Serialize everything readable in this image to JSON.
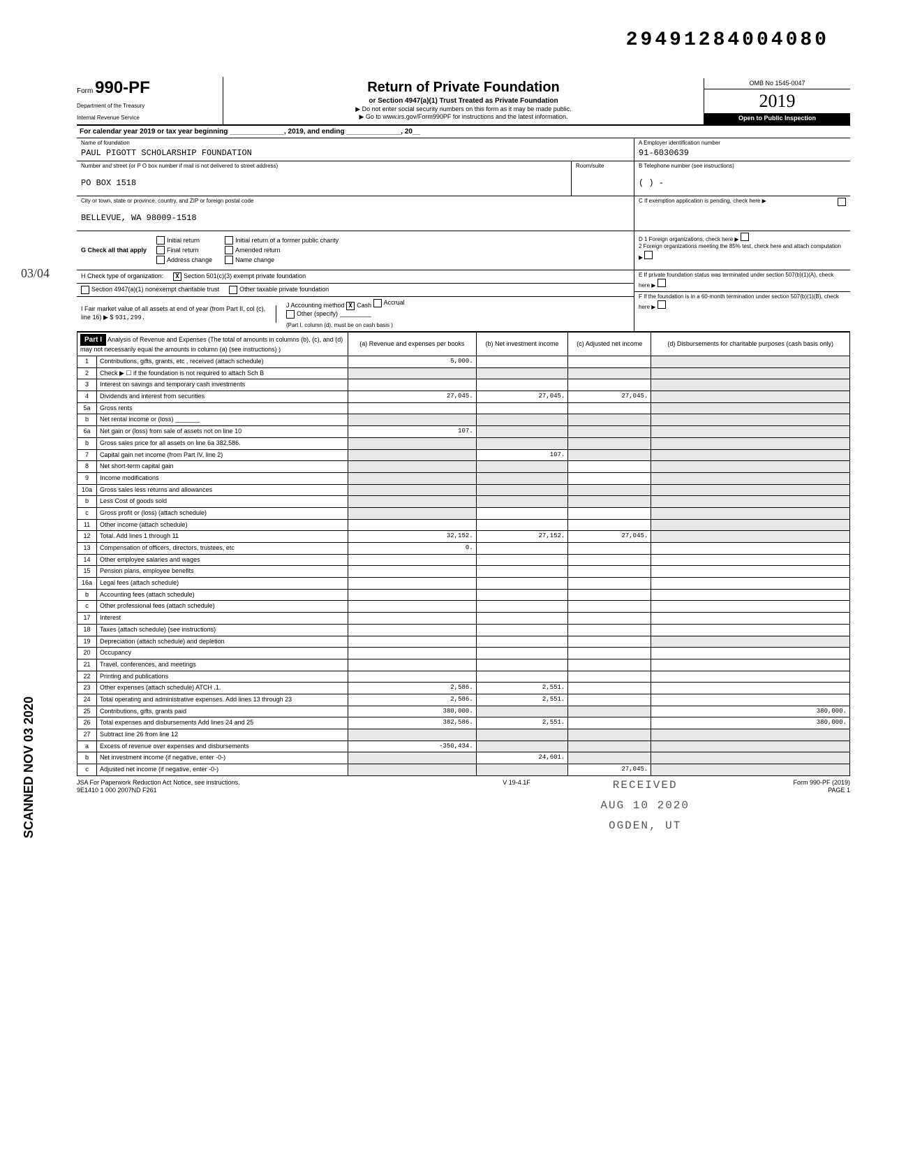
{
  "doc_id": "29491284004080",
  "form": {
    "prefix": "Form",
    "number": "990-PF",
    "dept1": "Department of the Treasury",
    "dept2": "Internal Revenue Service"
  },
  "header": {
    "title": "Return of Private Foundation",
    "sub1": "or Section 4947(a)(1) Trust Treated as Private Foundation",
    "sub2": "▶ Do not enter social security numbers on this form as it may be made public.",
    "sub3": "▶ Go to www.irs.gov/Form990PF for instructions and the latest information.",
    "omb": "OMB No 1545-0047",
    "year": "2019",
    "open": "Open to Public Inspection"
  },
  "cal_year": "For calendar year 2019 or tax year beginning ______________, 2019, and ending ______________, 20__",
  "identity": {
    "name_label": "Name of foundation",
    "name": "PAUL PIGOTT SCHOLARSHIP FOUNDATION",
    "addr_label": "Number and street (or P O box number if mail is not delivered to street address)",
    "addr": "PO BOX 1518",
    "city_label": "City or town, state or province, country, and ZIP or foreign postal code",
    "city": "BELLEVUE, WA 98009-1518",
    "room_label": "Room/suite",
    "ein_label": "A  Employer identification number",
    "ein": "91-6030639",
    "phone_label": "B  Telephone number (see instructions)",
    "phone": "(     )     -",
    "c_label": "C  If exemption application is pending, check here",
    "d1": "D  1  Foreign organizations, check here",
    "d2": "2  Foreign organizations meeting the 85% test, check here and attach computation",
    "e_label": "E  If private foundation status was terminated under section 507(b)(1)(A), check here",
    "f_label": "F  If the foundation is in a 60-month termination under section 507(b)(1)(B), check here"
  },
  "g": {
    "label": "G  Check all that apply",
    "opts": [
      "Initial return",
      "Final return",
      "Address change",
      "Initial return of a former public charity",
      "Amended return",
      "Name change"
    ]
  },
  "h": {
    "label": "H  Check type of organization:",
    "opt1": "Section 501(c)(3) exempt private foundation",
    "opt1_checked": "X",
    "opt2": "Section 4947(a)(1) nonexempt charitable trust",
    "opt3": "Other taxable private foundation"
  },
  "i": {
    "label": "I  Fair market value of all assets at end of year (from Part II, col (c), line 16) ▶ $",
    "value": "931,299."
  },
  "j": {
    "label": "J Accounting method",
    "cash": "Cash",
    "cash_checked": "X",
    "accrual": "Accrual",
    "other": "Other (specify)",
    "note": "(Part I, column (d), must be on cash basis )"
  },
  "part1": {
    "label": "Part I",
    "title": "Analysis of Revenue and Expenses (The total of amounts in columns (b), (c), and (d) may not necessarily equal the amounts in column (a) (see instructions) )",
    "col_a": "(a) Revenue and expenses per books",
    "col_b": "(b) Net investment income",
    "col_c": "(c) Adjusted net income",
    "col_d": "(d) Disbursements for charitable purposes (cash basis only)"
  },
  "sections": {
    "revenue": "Revenue",
    "operating": "Operating and Administrative Expenses"
  },
  "rows": [
    {
      "n": "1",
      "desc": "Contributions, gifts, grants, etc , received (attach schedule)",
      "a": "5,000.",
      "b": "",
      "c": "",
      "d": "",
      "d_shade": true
    },
    {
      "n": "2",
      "desc": "Check ▶ ☐ if the foundation is not required to attach Sch B",
      "a": "",
      "b": "",
      "c": "",
      "d": "",
      "d_shade": true,
      "b_shade": true,
      "c_shade": true,
      "a_shade": true
    },
    {
      "n": "3",
      "desc": "Interest on savings and temporary cash investments",
      "a": "",
      "b": "",
      "c": "",
      "d": "",
      "d_shade": true
    },
    {
      "n": "4",
      "desc": "Dividends and interest from securities",
      "a": "27,045.",
      "b": "27,045.",
      "c": "27,045.",
      "d": "",
      "d_shade": true
    },
    {
      "n": "5a",
      "desc": "Gross rents",
      "a": "",
      "b": "",
      "c": "",
      "d": "",
      "d_shade": true
    },
    {
      "n": "b",
      "desc": "Net rental income or (loss) _______",
      "a": "",
      "b": "",
      "c": "",
      "d": "",
      "a_shade": true,
      "b_shade": true,
      "c_shade": true,
      "d_shade": true
    },
    {
      "n": "6a",
      "desc": "Net gain or (loss) from sale of assets not on line 10",
      "a": "107.",
      "b": "",
      "c": "",
      "d": "",
      "b_shade": true,
      "c_shade": true,
      "d_shade": true
    },
    {
      "n": "b",
      "desc": "Gross sales price for all assets on line 6a        382,586.",
      "a": "",
      "b": "",
      "c": "",
      "d": "",
      "a_shade": true,
      "b_shade": true,
      "c_shade": true,
      "d_shade": true
    },
    {
      "n": "7",
      "desc": "Capital gain net income (from Part IV, line 2)",
      "a": "",
      "b": "107.",
      "c": "",
      "d": "",
      "a_shade": true,
      "c_shade": true,
      "d_shade": true
    },
    {
      "n": "8",
      "desc": "Net short-term capital gain",
      "a": "",
      "b": "",
      "c": "",
      "d": "",
      "a_shade": true,
      "b_shade": true,
      "d_shade": true
    },
    {
      "n": "9",
      "desc": "Income modifications",
      "a": "",
      "b": "",
      "c": "",
      "d": "",
      "a_shade": true,
      "b_shade": true,
      "d_shade": true
    },
    {
      "n": "10a",
      "desc": "Gross sales less returns and allowances",
      "a": "",
      "b": "",
      "c": "",
      "d": "",
      "a_shade": true,
      "b_shade": true,
      "c_shade": true,
      "d_shade": true
    },
    {
      "n": "b",
      "desc": "Less Cost of goods sold",
      "a": "",
      "b": "",
      "c": "",
      "d": "",
      "a_shade": true,
      "b_shade": true,
      "c_shade": true,
      "d_shade": true
    },
    {
      "n": "c",
      "desc": "Gross profit or (loss) (attach schedule)",
      "a": "",
      "b": "",
      "c": "",
      "d": "",
      "a_shade": true,
      "d_shade": true
    },
    {
      "n": "11",
      "desc": "Other income (attach schedule)",
      "a": "",
      "b": "",
      "c": "",
      "d": "",
      "d_shade": true
    },
    {
      "n": "12",
      "desc": "Total. Add lines 1 through 11",
      "a": "32,152.",
      "b": "27,152.",
      "c": "27,045.",
      "d": "",
      "d_shade": true
    },
    {
      "n": "13",
      "desc": "Compensation of officers, directors, trustees, etc",
      "a": "0.",
      "b": "",
      "c": "",
      "d": ""
    },
    {
      "n": "14",
      "desc": "Other employee salaries and wages",
      "a": "",
      "b": "",
      "c": "",
      "d": ""
    },
    {
      "n": "15",
      "desc": "Pension plans, employee benefits",
      "a": "",
      "b": "",
      "c": "",
      "d": ""
    },
    {
      "n": "16a",
      "desc": "Legal fees (attach schedule)",
      "a": "",
      "b": "",
      "c": "",
      "d": ""
    },
    {
      "n": "b",
      "desc": "Accounting fees (attach schedule)",
      "a": "",
      "b": "",
      "c": "",
      "d": ""
    },
    {
      "n": "c",
      "desc": "Other professional fees (attach schedule)",
      "a": "",
      "b": "",
      "c": "",
      "d": ""
    },
    {
      "n": "17",
      "desc": "Interest",
      "a": "",
      "b": "",
      "c": "",
      "d": ""
    },
    {
      "n": "18",
      "desc": "Taxes (attach schedule) (see instructions)",
      "a": "",
      "b": "",
      "c": "",
      "d": ""
    },
    {
      "n": "19",
      "desc": "Depreciation (attach schedule) and depletion",
      "a": "",
      "b": "",
      "c": "",
      "d": "",
      "d_shade": true
    },
    {
      "n": "20",
      "desc": "Occupancy",
      "a": "",
      "b": "",
      "c": "",
      "d": ""
    },
    {
      "n": "21",
      "desc": "Travel, conferences, and meetings",
      "a": "",
      "b": "",
      "c": "",
      "d": ""
    },
    {
      "n": "22",
      "desc": "Printing and publications",
      "a": "",
      "b": "",
      "c": "",
      "d": ""
    },
    {
      "n": "23",
      "desc": "Other expenses (attach schedule) ATCH .1.",
      "a": "2,586.",
      "b": "2,551.",
      "c": "",
      "d": ""
    },
    {
      "n": "24",
      "desc": "Total operating and administrative expenses. Add lines 13 through 23",
      "a": "2,586.",
      "b": "2,551.",
      "c": "",
      "d": ""
    },
    {
      "n": "25",
      "desc": "Contributions, gifts, grants paid",
      "a": "380,000.",
      "b": "",
      "c": "",
      "d": "380,000.",
      "b_shade": true,
      "c_shade": true
    },
    {
      "n": "26",
      "desc": "Total expenses and disbursements Add lines 24 and 25",
      "a": "382,586.",
      "b": "2,551.",
      "c": "",
      "d": "380,000."
    },
    {
      "n": "27",
      "desc": "Subtract line 26 from line 12",
      "a": "",
      "b": "",
      "c": "",
      "d": "",
      "a_shade": true,
      "b_shade": true,
      "c_shade": true,
      "d_shade": true
    },
    {
      "n": "a",
      "desc": "Excess of revenue over expenses and disbursements",
      "a": "-350,434.",
      "b": "",
      "c": "",
      "d": "",
      "b_shade": true,
      "c_shade": true,
      "d_shade": true
    },
    {
      "n": "b",
      "desc": "Net investment income (if negative, enter -0-)",
      "a": "",
      "b": "24,601.",
      "c": "",
      "d": "",
      "a_shade": true,
      "c_shade": true,
      "d_shade": true
    },
    {
      "n": "c",
      "desc": "Adjusted net income (if negative, enter -0-)",
      "a": "",
      "b": "",
      "c": "27,045.",
      "d": "",
      "a_shade": true,
      "b_shade": true,
      "d_shade": true
    }
  ],
  "footer": {
    "jsa": "JSA For Paperwork Reduction Act Notice, see instructions.",
    "code": "9E1410 1 000   2007ND F261",
    "version": "V 19-4.1F",
    "form": "Form 990-PF (2019)",
    "page": "PAGE 1"
  },
  "stamp": {
    "l1": "RECEIVED",
    "l2": "AUG 10 2020",
    "l3": "OGDEN, UT"
  },
  "scanned": "SCANNED NOV 03 2020",
  "hand": {
    "frac": "03/04",
    "o4": "04"
  }
}
